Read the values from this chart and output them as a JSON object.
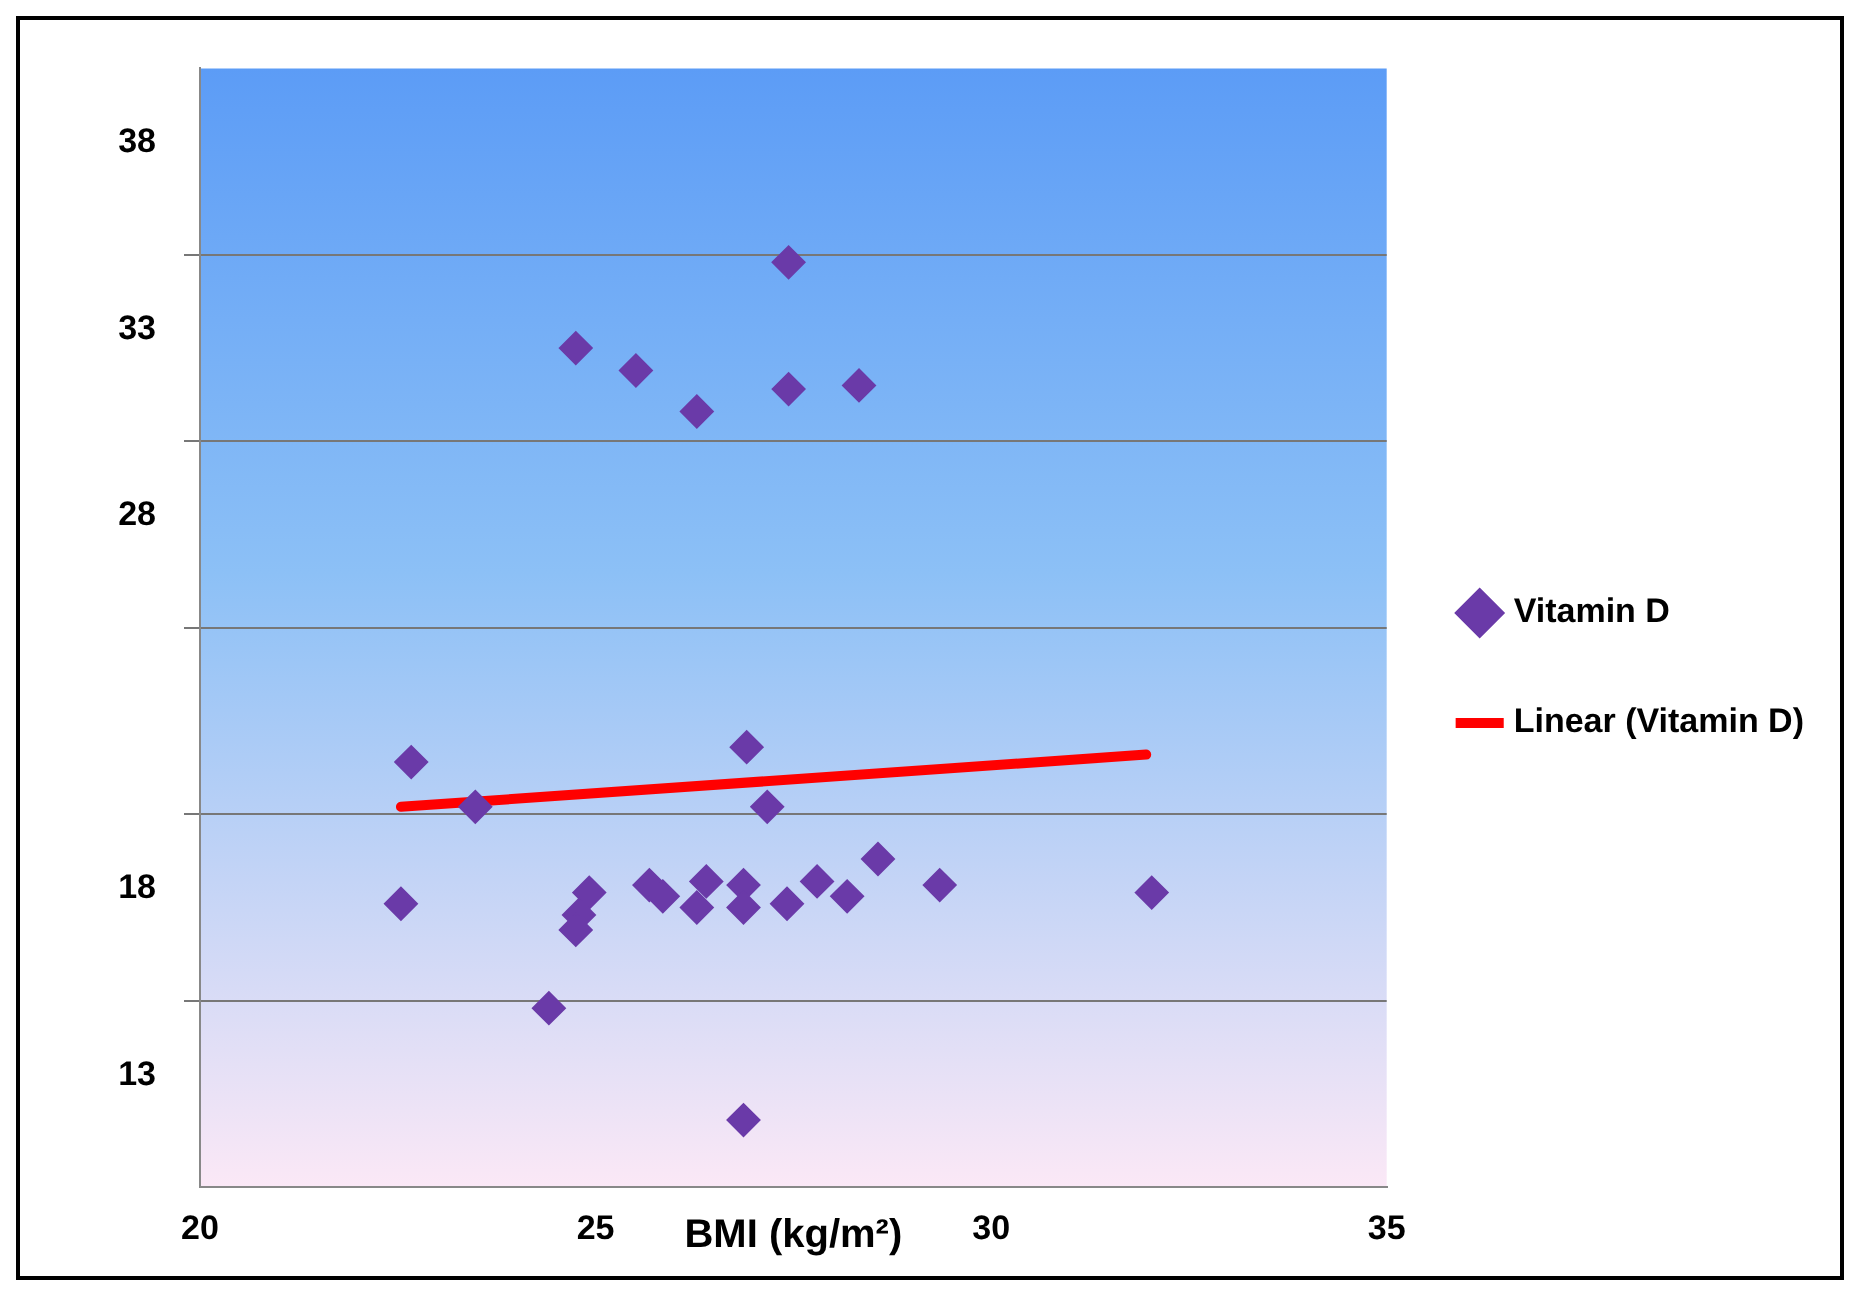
{
  "chart_data": {
    "type": "scatter",
    "xlabel": "BMI (kg/m²)",
    "legend": "right",
    "marker": "diamond",
    "grid": "y",
    "xlim": [
      20,
      35
    ],
    "xticks": [
      20,
      25,
      30,
      35
    ],
    "ylim": [
      10,
      40
    ],
    "yticks": [
      38,
      {
        "value": 35,
        "label": null
      },
      33,
      {
        "value": 30,
        "label": null
      },
      28,
      {
        "value": 25,
        "label": null
      },
      {
        "value": 20,
        "label": null
      },
      18,
      {
        "value": 15,
        "label": null
      },
      13
    ],
    "series": [
      {
        "name": "Vitamin D",
        "type": "scatter",
        "color": "#6a3aa8",
        "x": [
          27.44,
          24.75,
          25.51,
          26.28,
          27.44,
          28.33,
          22.67,
          23.48,
          26.91,
          27.17,
          22.54,
          28.57,
          29.35,
          24.92,
          24.79,
          24.75,
          25.68,
          25.85,
          26.4,
          26.28,
          26.87,
          26.87,
          27.42,
          27.8,
          28.18,
          24.41,
          26.87,
          32.03
        ],
        "values": [
          34.8,
          32.5,
          31.9,
          30.8,
          31.4,
          31.5,
          21.4,
          20.2,
          21.8,
          20.2,
          17.6,
          18.8,
          18.1,
          17.9,
          17.3,
          16.9,
          18.1,
          17.8,
          18.2,
          17.5,
          18.1,
          17.5,
          17.6,
          18.2,
          17.8,
          14.8,
          11.8,
          17.9
        ]
      },
      {
        "name": "Linear (Vitamin D)",
        "type": "line",
        "marker": "none",
        "color": "#ff0000",
        "x": [
          22.54,
          31.96
        ],
        "values": [
          20.2,
          21.6
        ]
      }
    ]
  }
}
